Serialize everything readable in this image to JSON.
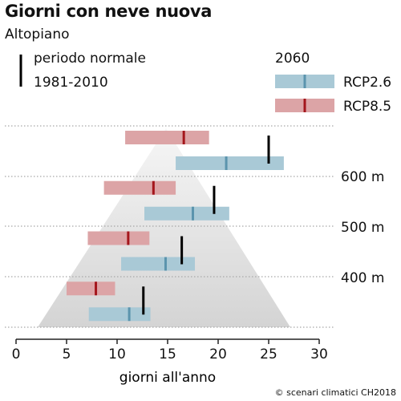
{
  "title": "Giorni con neve nuova",
  "subtitle": "Altopiano",
  "legend": {
    "normal_line1": "periodo normale",
    "normal_line2": "1981-2010",
    "year": "2060",
    "rcp26": "RCP2.6",
    "rcp85": "RCP8.5",
    "color_rcp26": "#a9c9d6",
    "color_rcp26_median": "#5b94ad",
    "color_rcp85": "#dca4a6",
    "color_rcp85_median": "#a4161c",
    "color_normal": "#000000"
  },
  "credit": "© scenari climatici CH2018",
  "chart_data": {
    "type": "range-bar",
    "xlabel": "giorni all'anno",
    "xlim": [
      0,
      30
    ],
    "xticks": [
      0,
      5,
      10,
      15,
      20,
      25,
      30
    ],
    "altitude_labels": [
      "600 m",
      "500 m",
      "400 m"
    ],
    "groups": [
      {
        "rcp85": {
          "low": 10.8,
          "high": 19.1,
          "median": 16.6
        },
        "rcp26": {
          "low": 15.8,
          "high": 26.5,
          "median": 20.8
        },
        "normal": 25.0
      },
      {
        "rcp85": {
          "low": 8.7,
          "high": 15.8,
          "median": 13.6
        },
        "rcp26": {
          "low": 12.7,
          "high": 21.1,
          "median": 17.5
        },
        "normal": 19.6
      },
      {
        "rcp85": {
          "low": 7.1,
          "high": 13.2,
          "median": 11.1
        },
        "rcp26": {
          "low": 10.4,
          "high": 17.7,
          "median": 14.8
        },
        "normal": 16.4
      },
      {
        "rcp85": {
          "low": 5.0,
          "high": 9.8,
          "median": 7.9
        },
        "rcp26": {
          "low": 7.2,
          "high": 13.3,
          "median": 11.2
        },
        "normal": 12.6
      }
    ]
  }
}
